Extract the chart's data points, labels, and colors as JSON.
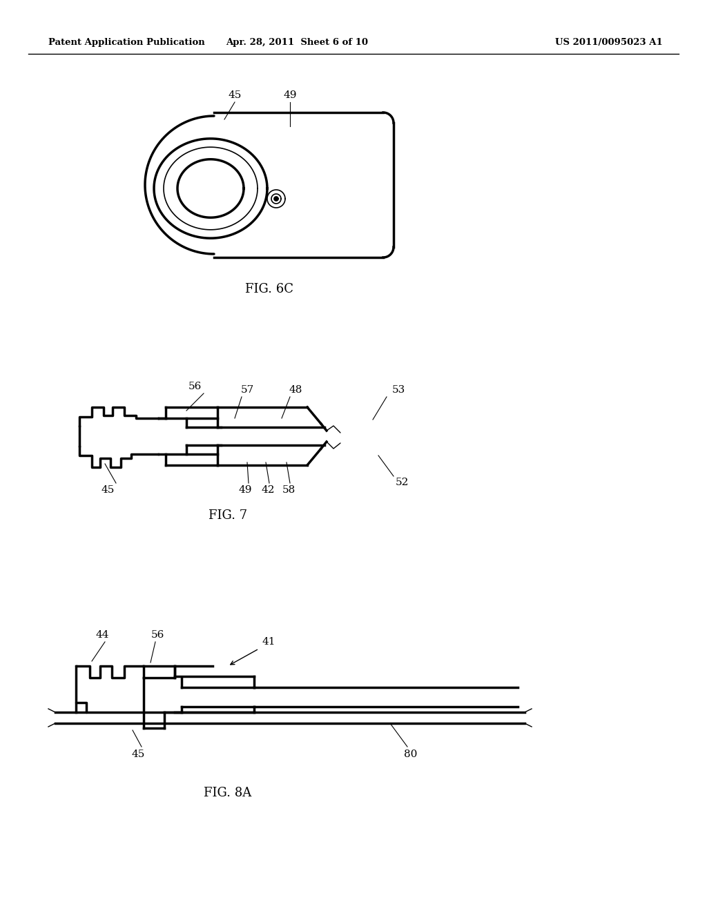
{
  "bg_color": "#ffffff",
  "header_left": "Patent Application Publication",
  "header_mid": "Apr. 28, 2011  Sheet 6 of 10",
  "header_right": "US 2011/0095023 A1",
  "fig6c_label": "FIG. 6C",
  "fig7_label": "FIG. 7",
  "fig8a_label": "FIG. 8A"
}
